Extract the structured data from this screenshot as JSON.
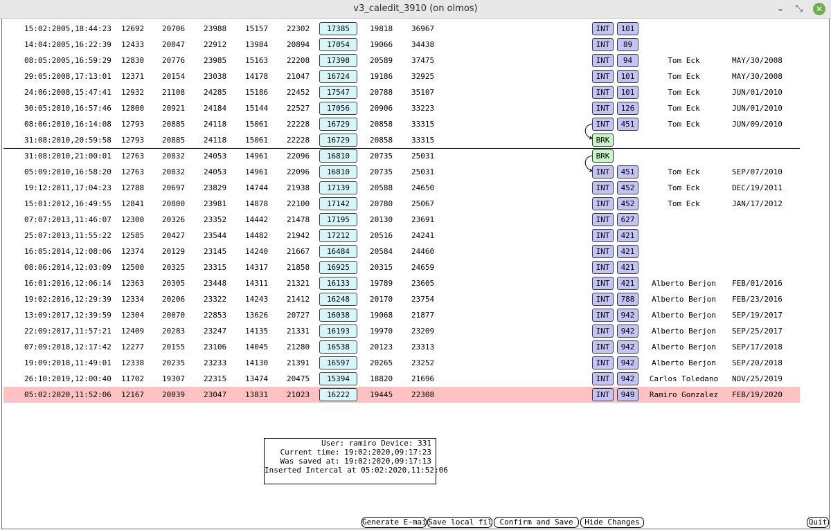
{
  "window": {
    "title": "v3_caledit_3910 (on olmos)",
    "min_label": "⌄",
    "restore_label": "⤡",
    "close_label": "✕"
  },
  "rows": [
    {
      "date": "15:02:2005,18:44:23",
      "c1": "12692",
      "c2": "20706",
      "c3": "23988",
      "c4": "15157",
      "c5": "22302",
      "c6": "17385",
      "c7": "19818",
      "c8": "36967",
      "kind": "INT",
      "code": "101",
      "user": "",
      "when": ""
    },
    {
      "date": "14:04:2005,16:22:39",
      "c1": "12433",
      "c2": "20047",
      "c3": "22912",
      "c4": "13984",
      "c5": "20894",
      "c6": "17054",
      "c7": "19066",
      "c8": "34438",
      "kind": "INT",
      "code": "89",
      "user": "",
      "when": ""
    },
    {
      "date": "08:05:2005,16:59:29",
      "c1": "12830",
      "c2": "20776",
      "c3": "23985",
      "c4": "15163",
      "c5": "22208",
      "c6": "17398",
      "c7": "20589",
      "c8": "37475",
      "kind": "INT",
      "code": "94",
      "user": "Tom Eck",
      "when": "MAY/30/2008"
    },
    {
      "date": "29:05:2008,17:13:01",
      "c1": "12371",
      "c2": "20154",
      "c3": "23038",
      "c4": "14178",
      "c5": "21047",
      "c6": "16724",
      "c7": "19186",
      "c8": "32925",
      "kind": "INT",
      "code": "101",
      "user": "Tom Eck",
      "when": "MAY/30/2008"
    },
    {
      "date": "24:06:2008,15:47:41",
      "c1": "12932",
      "c2": "21108",
      "c3": "24285",
      "c4": "15186",
      "c5": "22452",
      "c6": "17547",
      "c7": "20788",
      "c8": "35107",
      "kind": "INT",
      "code": "101",
      "user": "Tom Eck",
      "when": "JUN/01/2010"
    },
    {
      "date": "30:05:2010,16:57:46",
      "c1": "12800",
      "c2": "20921",
      "c3": "24184",
      "c4": "15144",
      "c5": "22527",
      "c6": "17056",
      "c7": "20906",
      "c8": "33223",
      "kind": "INT",
      "code": "126",
      "user": "Tom Eck",
      "when": "JUN/01/2010"
    },
    {
      "date": "08:06:2010,16:14:08",
      "c1": "12793",
      "c2": "20885",
      "c3": "24118",
      "c4": "15061",
      "c5": "22228",
      "c6": "16729",
      "c7": "20858",
      "c8": "33315",
      "kind": "INT",
      "code": "451",
      "user": "Tom Eck",
      "when": "JUN/09/2010"
    },
    {
      "date": "31:08:2010,20:59:58",
      "c1": "12793",
      "c2": "20885",
      "c3": "24118",
      "c4": "15061",
      "c5": "22228",
      "c6": "16729",
      "c7": "20858",
      "c8": "33315",
      "kind": "BRK",
      "code": "",
      "user": "",
      "when": ""
    },
    {
      "date": "31:08:2010,21:00:01",
      "c1": "12763",
      "c2": "20832",
      "c3": "24053",
      "c4": "14961",
      "c5": "22096",
      "c6": "16810",
      "c7": "20735",
      "c8": "25031",
      "kind": "BRK",
      "code": "",
      "user": "",
      "when": ""
    },
    {
      "date": "05:09:2010,16:58:20",
      "c1": "12763",
      "c2": "20832",
      "c3": "24053",
      "c4": "14961",
      "c5": "22096",
      "c6": "16810",
      "c7": "20735",
      "c8": "25031",
      "kind": "INT",
      "code": "451",
      "user": "Tom Eck",
      "when": "SEP/07/2010"
    },
    {
      "date": "19:12:2011,17:04:23",
      "c1": "12788",
      "c2": "20697",
      "c3": "23829",
      "c4": "14744",
      "c5": "21938",
      "c6": "17139",
      "c7": "20588",
      "c8": "24650",
      "kind": "INT",
      "code": "452",
      "user": "Tom Eck",
      "when": "DEC/19/2011"
    },
    {
      "date": "15:01:2012,16:49:55",
      "c1": "12841",
      "c2": "20800",
      "c3": "23981",
      "c4": "14878",
      "c5": "22100",
      "c6": "17142",
      "c7": "20780",
      "c8": "25067",
      "kind": "INT",
      "code": "452",
      "user": "Tom Eck",
      "when": "JAN/17/2012"
    },
    {
      "date": "07:07:2013,11:46:07",
      "c1": "12300",
      "c2": "20326",
      "c3": "23352",
      "c4": "14442",
      "c5": "21478",
      "c6": "17195",
      "c7": "20130",
      "c8": "23691",
      "kind": "INT",
      "code": "627",
      "user": "",
      "when": ""
    },
    {
      "date": "25:07:2013,11:55:22",
      "c1": "12585",
      "c2": "20427",
      "c3": "23544",
      "c4": "14482",
      "c5": "21942",
      "c6": "17212",
      "c7": "20516",
      "c8": "24241",
      "kind": "INT",
      "code": "421",
      "user": "",
      "when": ""
    },
    {
      "date": "16:05:2014,12:08:06",
      "c1": "12374",
      "c2": "20129",
      "c3": "23145",
      "c4": "14240",
      "c5": "21667",
      "c6": "16484",
      "c7": "20584",
      "c8": "24460",
      "kind": "INT",
      "code": "421",
      "user": "",
      "when": ""
    },
    {
      "date": "08:06:2014,12:03:09",
      "c1": "12500",
      "c2": "20325",
      "c3": "23315",
      "c4": "14317",
      "c5": "21858",
      "c6": "16925",
      "c7": "20315",
      "c8": "24659",
      "kind": "INT",
      "code": "421",
      "user": "",
      "when": ""
    },
    {
      "date": "16:01:2016,12:06:14",
      "c1": "12363",
      "c2": "20305",
      "c3": "23448",
      "c4": "14311",
      "c5": "21321",
      "c6": "16133",
      "c7": "19789",
      "c8": "23605",
      "kind": "INT",
      "code": "421",
      "user": "Alberto Berjon",
      "when": "FEB/01/2016"
    },
    {
      "date": "19:02:2016,12:29:39",
      "c1": "12334",
      "c2": "20206",
      "c3": "23322",
      "c4": "14243",
      "c5": "21412",
      "c6": "16248",
      "c7": "20170",
      "c8": "23754",
      "kind": "INT",
      "code": "788",
      "user": "Alberto Berjon",
      "when": "FEB/23/2016"
    },
    {
      "date": "13:09:2017,12:39:59",
      "c1": "12304",
      "c2": "20070",
      "c3": "22853",
      "c4": "13626",
      "c5": "20727",
      "c6": "16038",
      "c7": "19068",
      "c8": "21877",
      "kind": "INT",
      "code": "942",
      "user": "Alberto Berjon",
      "when": "SEP/19/2017"
    },
    {
      "date": "22:09:2017,11:57:21",
      "c1": "12409",
      "c2": "20283",
      "c3": "23247",
      "c4": "14135",
      "c5": "21331",
      "c6": "16193",
      "c7": "19970",
      "c8": "23209",
      "kind": "INT",
      "code": "942",
      "user": "Alberto Berjon",
      "when": "SEP/25/2017"
    },
    {
      "date": "07:09:2018,12:17:42",
      "c1": "12277",
      "c2": "20155",
      "c3": "23106",
      "c4": "14045",
      "c5": "21280",
      "c6": "16538",
      "c7": "20123",
      "c8": "23313",
      "kind": "INT",
      "code": "942",
      "user": "Alberto Berjon",
      "when": "SEP/17/2018"
    },
    {
      "date": "19:09:2018,11:49:01",
      "c1": "12338",
      "c2": "20235",
      "c3": "23233",
      "c4": "14130",
      "c5": "21391",
      "c6": "16597",
      "c7": "20265",
      "c8": "23252",
      "kind": "INT",
      "code": "942",
      "user": "Alberto Berjon",
      "when": "SEP/20/2018"
    },
    {
      "date": "26:10:2019,12:00:40",
      "c1": "11702",
      "c2": "19307",
      "c3": "22315",
      "c4": "13474",
      "c5": "20475",
      "c6": "15394",
      "c7": "18820",
      "c8": "21696",
      "kind": "INT",
      "code": "942",
      "user": "Carlos Toledano",
      "when": "NOV/25/2019"
    },
    {
      "date": "05:02:2020,11:52:06",
      "c1": "12167",
      "c2": "20039",
      "c3": "23047",
      "c4": "13831",
      "c5": "21023",
      "c6": "16222",
      "c7": "19445",
      "c8": "22308",
      "kind": "INT",
      "code": "949",
      "user": "Ramiro Gonzalez",
      "when": "FEB/19/2020",
      "highlight": true
    }
  ],
  "info": {
    "line1": "User: ramiro Device: 331",
    "line2": "Current time: 19:02:2020,09:17:23",
    "line3": "Was saved at: 19:02:2020,09:17:13",
    "line4": "Inserted Intercal at 05:02:2020,11:52:06"
  },
  "buttons": {
    "generate_email": "Generate E-mail",
    "save_local": "Save local file",
    "confirm_save": "Confirm and Save",
    "hide_changes": "Hide Changes",
    "quit": "Quit"
  },
  "colors": {
    "highlight_row": "#ffc1c1",
    "value_box": "#d6f6fa",
    "int_tag": "#c3c3f6",
    "brk_tag": "#c6f7c6"
  }
}
